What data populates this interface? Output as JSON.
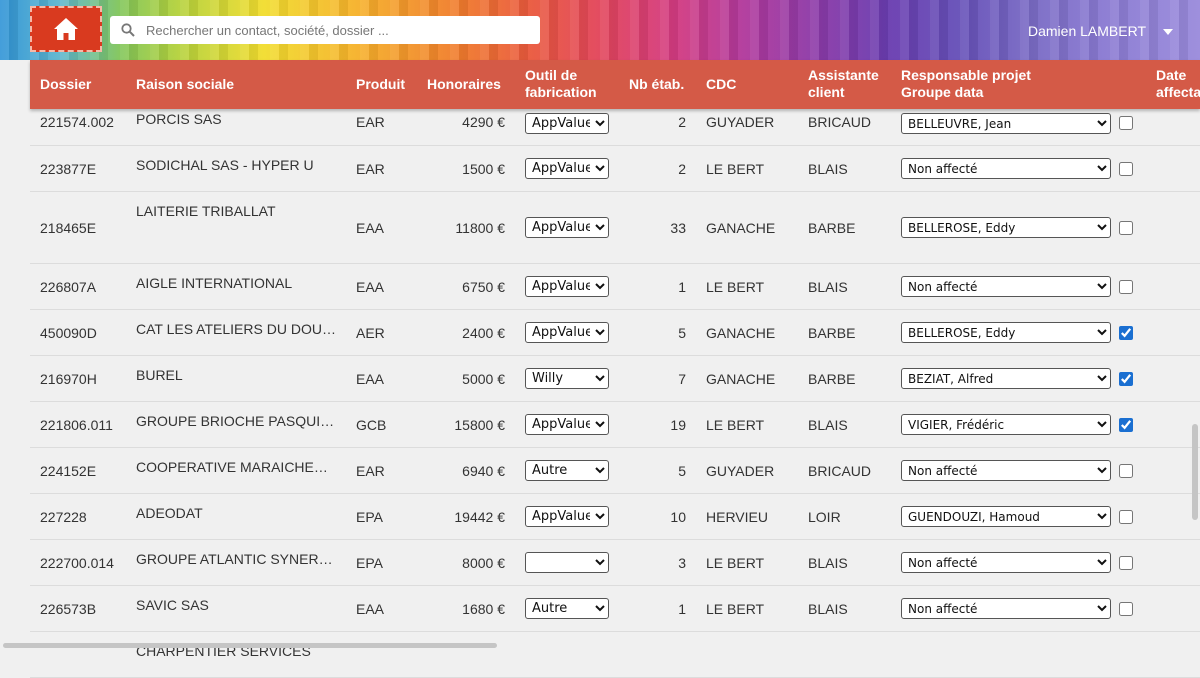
{
  "topbar": {
    "search_placeholder": "Rechercher un contact, société, dossier ...",
    "user_name": "Damien LAMBERT"
  },
  "table": {
    "headers": {
      "dossier": "Dossier",
      "raison": "Raison sociale",
      "produit": "Produit",
      "honoraires": "Honoraires",
      "outil_1": "Outil de",
      "outil_2": "fabrication",
      "nb": "Nb étab.",
      "cdc": "CDC",
      "assistante_1": "Assistante",
      "assistante_2": "client",
      "resp_1": "Responsable projet",
      "resp_2": "Groupe data",
      "date_1": "Date",
      "date_2": "affecta"
    },
    "rows": [
      {
        "dossier": "221574.002",
        "raison": "PORCIS SAS",
        "produit": "EAR",
        "honoraires": "4290 €",
        "outil": "AppValue",
        "nb": "2",
        "cdc": "GUYADER",
        "assistante": "BRICAUD",
        "responsable": "BELLEUVRE, Jean",
        "checked": false
      },
      {
        "dossier": "223877E",
        "raison": "SODICHAL SAS - HYPER U",
        "produit": "EAR",
        "honoraires": "1500 €",
        "outil": "AppValue",
        "nb": "2",
        "cdc": "LE BERT",
        "assistante": "BLAIS",
        "responsable": "Non affecté",
        "checked": false
      },
      {
        "dossier": "218465E",
        "raison": "LAITERIE TRIBALLAT",
        "produit": "EAA",
        "honoraires": "11800 €",
        "outil": "AppValue",
        "nb": "33",
        "cdc": "GANACHE",
        "assistante": "BARBE",
        "responsable": "BELLEROSE, Eddy",
        "checked": false
      },
      {
        "dossier": "226807A",
        "raison": "AIGLE INTERNATIONAL",
        "produit": "EAA",
        "honoraires": "6750 €",
        "outil": "AppValue",
        "nb": "1",
        "cdc": "LE BERT",
        "assistante": "BLAIS",
        "responsable": "Non affecté",
        "checked": false
      },
      {
        "dossier": "450090D",
        "raison": "CAT LES ATELIERS DU DOU…",
        "produit": "AER",
        "honoraires": "2400 €",
        "outil": "AppValue",
        "nb": "5",
        "cdc": "GANACHE",
        "assistante": "BARBE",
        "responsable": "BELLEROSE, Eddy",
        "checked": true
      },
      {
        "dossier": "216970H",
        "raison": "BUREL",
        "produit": "EAA",
        "honoraires": "5000 €",
        "outil": "Willy",
        "nb": "7",
        "cdc": "GANACHE",
        "assistante": "BARBE",
        "responsable": "BEZIAT, Alfred",
        "checked": true
      },
      {
        "dossier": "221806.011",
        "raison": "GROUPE BRIOCHE PASQUIER",
        "produit": "GCB",
        "honoraires": "15800 €",
        "outil": "AppValue",
        "nb": "19",
        "cdc": "LE BERT",
        "assistante": "BLAIS",
        "responsable": "VIGIER, Frédéric",
        "checked": true
      },
      {
        "dossier": "224152E",
        "raison": "COOPERATIVE MARAICHER…",
        "produit": "EAR",
        "honoraires": "6940 €",
        "outil": "Autre",
        "nb": "5",
        "cdc": "GUYADER",
        "assistante": "BRICAUD",
        "responsable": "Non affecté",
        "checked": false
      },
      {
        "dossier": "227228",
        "raison": "ADEODAT",
        "produit": "EPA",
        "honoraires": "19442 €",
        "outil": "AppValue",
        "nb": "10",
        "cdc": "HERVIEU",
        "assistante": "LOIR",
        "responsable": "GUENDOUZI, Hamoud",
        "checked": false
      },
      {
        "dossier": "222700.014",
        "raison": "GROUPE ATLANTIC SYNERGY",
        "produit": "EPA",
        "honoraires": "8000 €",
        "outil": "",
        "nb": "3",
        "cdc": "LE BERT",
        "assistante": "BLAIS",
        "responsable": "Non affecté",
        "checked": false
      },
      {
        "dossier": "226573B",
        "raison": "SAVIC SAS",
        "produit": "EAA",
        "honoraires": "1680 €",
        "outil": "Autre",
        "nb": "1",
        "cdc": "LE BERT",
        "assistante": "BLAIS",
        "responsable": "Non affecté",
        "checked": false
      },
      {
        "dossier": "",
        "raison": "CHARPENTIER SERVICES",
        "produit": "",
        "honoraires": "",
        "outil": "",
        "nb": "",
        "cdc": "",
        "assistante": "",
        "responsable": "",
        "checked": false
      }
    ]
  }
}
